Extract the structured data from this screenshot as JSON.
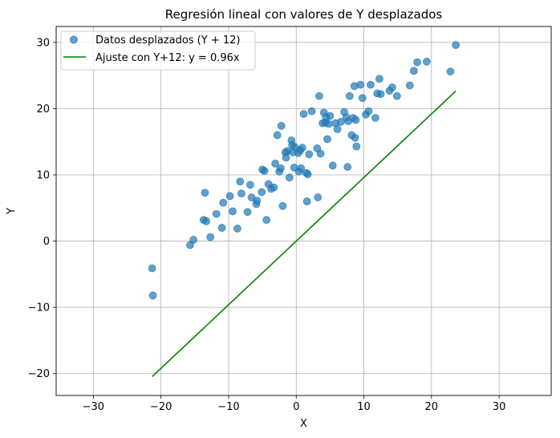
{
  "chart_data": {
    "type": "scatter",
    "title": "Regresión lineal con valores de Y desplazados",
    "xlabel": "X",
    "ylabel": "Y",
    "xlim": [
      -35.5,
      37.7
    ],
    "ylim": [
      -23.3,
      32.4
    ],
    "xticks": [
      -30,
      -20,
      -10,
      0,
      10,
      20,
      30
    ],
    "yticks": [
      -20,
      -10,
      0,
      10,
      20,
      30
    ],
    "xtick_labels": [
      "−30",
      "−20",
      "−10",
      "0",
      "10",
      "20",
      "30"
    ],
    "ytick_labels": [
      "−20",
      "−10",
      "0",
      "10",
      "20",
      "30"
    ],
    "grid": true,
    "legend_position": "top-left",
    "series": [
      {
        "name": "Datos desplazados (Y + 12)",
        "kind": "scatter",
        "color": "#1f77b4",
        "points": [
          [
            -21.3,
            -4.1
          ],
          [
            -21.2,
            -8.2
          ],
          [
            -15.7,
            -0.6
          ],
          [
            -15.2,
            0.2
          ],
          [
            -13.7,
            3.2
          ],
          [
            -13.5,
            7.3
          ],
          [
            -13.3,
            3.0
          ],
          [
            -12.7,
            0.6
          ],
          [
            -11.8,
            4.1
          ],
          [
            -11.0,
            2.0
          ],
          [
            -10.8,
            5.8
          ],
          [
            -9.8,
            6.8
          ],
          [
            -9.4,
            4.5
          ],
          [
            -8.7,
            1.9
          ],
          [
            -8.3,
            9.0
          ],
          [
            -8.1,
            7.2
          ],
          [
            -7.2,
            4.4
          ],
          [
            -6.8,
            8.5
          ],
          [
            -6.6,
            6.6
          ],
          [
            -5.9,
            5.6
          ],
          [
            -5.8,
            6.1
          ],
          [
            -5.1,
            7.4
          ],
          [
            -5.0,
            10.8
          ],
          [
            -4.7,
            10.6
          ],
          [
            -4.4,
            3.2
          ],
          [
            -4.1,
            8.6
          ],
          [
            -3.7,
            7.9
          ],
          [
            -3.3,
            8.1
          ],
          [
            -3.1,
            11.7
          ],
          [
            -2.8,
            16.0
          ],
          [
            -2.5,
            10.5
          ],
          [
            -2.3,
            11.0
          ],
          [
            -2.2,
            17.4
          ],
          [
            -2.0,
            5.3
          ],
          [
            -1.6,
            13.4
          ],
          [
            -1.5,
            12.6
          ],
          [
            -1.3,
            13.6
          ],
          [
            -1.0,
            9.6
          ],
          [
            -0.7,
            15.2
          ],
          [
            -0.6,
            14.5
          ],
          [
            -0.5,
            13.4
          ],
          [
            -0.3,
            11.1
          ],
          [
            -0.2,
            14.2
          ],
          [
            0.3,
            13.3
          ],
          [
            0.4,
            10.5
          ],
          [
            0.6,
            13.7
          ],
          [
            0.7,
            11.0
          ],
          [
            0.9,
            14.1
          ],
          [
            1.1,
            19.2
          ],
          [
            1.5,
            10.3
          ],
          [
            1.6,
            6.0
          ],
          [
            1.7,
            10.1
          ],
          [
            1.9,
            13.1
          ],
          [
            2.3,
            19.6
          ],
          [
            3.1,
            14.0
          ],
          [
            3.2,
            6.6
          ],
          [
            3.4,
            21.9
          ],
          [
            3.6,
            13.2
          ],
          [
            3.9,
            17.8
          ],
          [
            4.1,
            19.4
          ],
          [
            4.3,
            17.9
          ],
          [
            4.4,
            18.7
          ],
          [
            4.6,
            15.4
          ],
          [
            4.8,
            17.7
          ],
          [
            5.0,
            18.9
          ],
          [
            5.4,
            11.4
          ],
          [
            5.8,
            17.8
          ],
          [
            6.1,
            16.9
          ],
          [
            6.6,
            18.0
          ],
          [
            7.1,
            19.5
          ],
          [
            7.4,
            18.7
          ],
          [
            7.6,
            11.2
          ],
          [
            7.7,
            18.1
          ],
          [
            7.9,
            21.9
          ],
          [
            8.2,
            16.0
          ],
          [
            8.4,
            18.6
          ],
          [
            8.6,
            23.4
          ],
          [
            8.7,
            15.6
          ],
          [
            8.8,
            18.3
          ],
          [
            8.9,
            14.3
          ],
          [
            9.5,
            23.6
          ],
          [
            9.8,
            21.6
          ],
          [
            10.3,
            19.1
          ],
          [
            10.7,
            19.6
          ],
          [
            11.0,
            23.6
          ],
          [
            11.7,
            18.6
          ],
          [
            12.0,
            22.3
          ],
          [
            12.3,
            24.5
          ],
          [
            12.5,
            22.2
          ],
          [
            13.8,
            22.7
          ],
          [
            14.2,
            23.2
          ],
          [
            14.9,
            21.9
          ],
          [
            16.8,
            23.5
          ],
          [
            17.4,
            25.7
          ],
          [
            17.9,
            27.0
          ],
          [
            19.3,
            27.1
          ],
          [
            22.8,
            25.6
          ],
          [
            23.6,
            29.6
          ]
        ]
      },
      {
        "name": "Ajuste con Y+12: y = 0.96x",
        "kind": "line",
        "color": "#008000",
        "slope": 0.96,
        "x_range": [
          -21.3,
          23.6
        ]
      }
    ]
  }
}
